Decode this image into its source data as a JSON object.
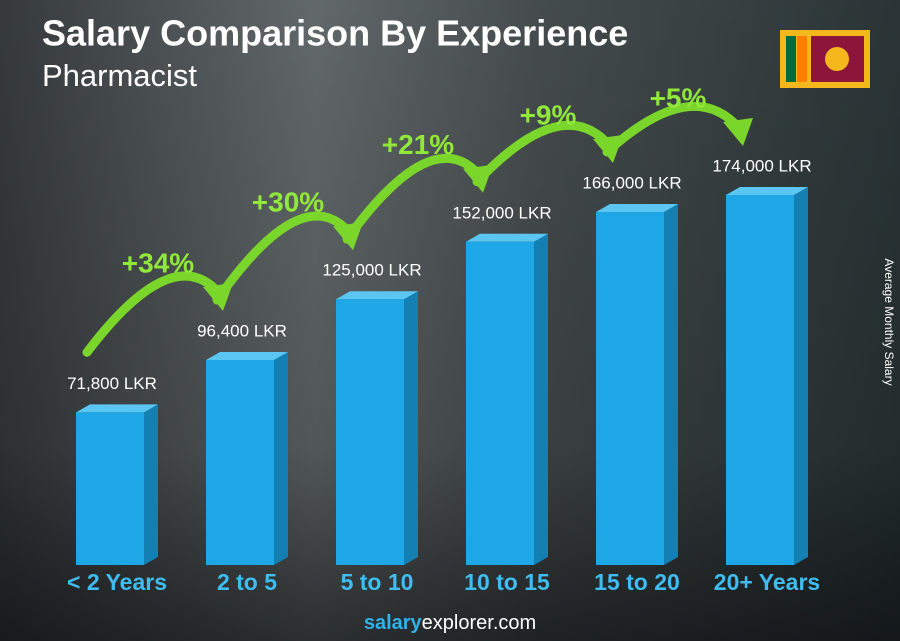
{
  "chart_data": {
    "type": "bar",
    "title": "Salary Comparison By Experience",
    "subtitle": "Pharmacist",
    "y_label": "Average Monthly Salary",
    "categories": [
      "< 2 Years",
      "2 to 5",
      "5 to 10",
      "10 to 15",
      "15 to 20",
      "20+ Years"
    ],
    "values": [
      71800,
      96400,
      125000,
      152000,
      166000,
      174000
    ],
    "value_labels": [
      "71,800 LKR",
      "96,400 LKR",
      "125,000 LKR",
      "152,000 LKR",
      "166,000 LKR",
      "174,000 LKR"
    ],
    "annotations": [
      "+34%",
      "+30%",
      "+21%",
      "+9%",
      "+5%"
    ],
    "color": "#1ea7e6",
    "footer": {
      "bold": "salary",
      "rest": "explorer.com"
    }
  }
}
